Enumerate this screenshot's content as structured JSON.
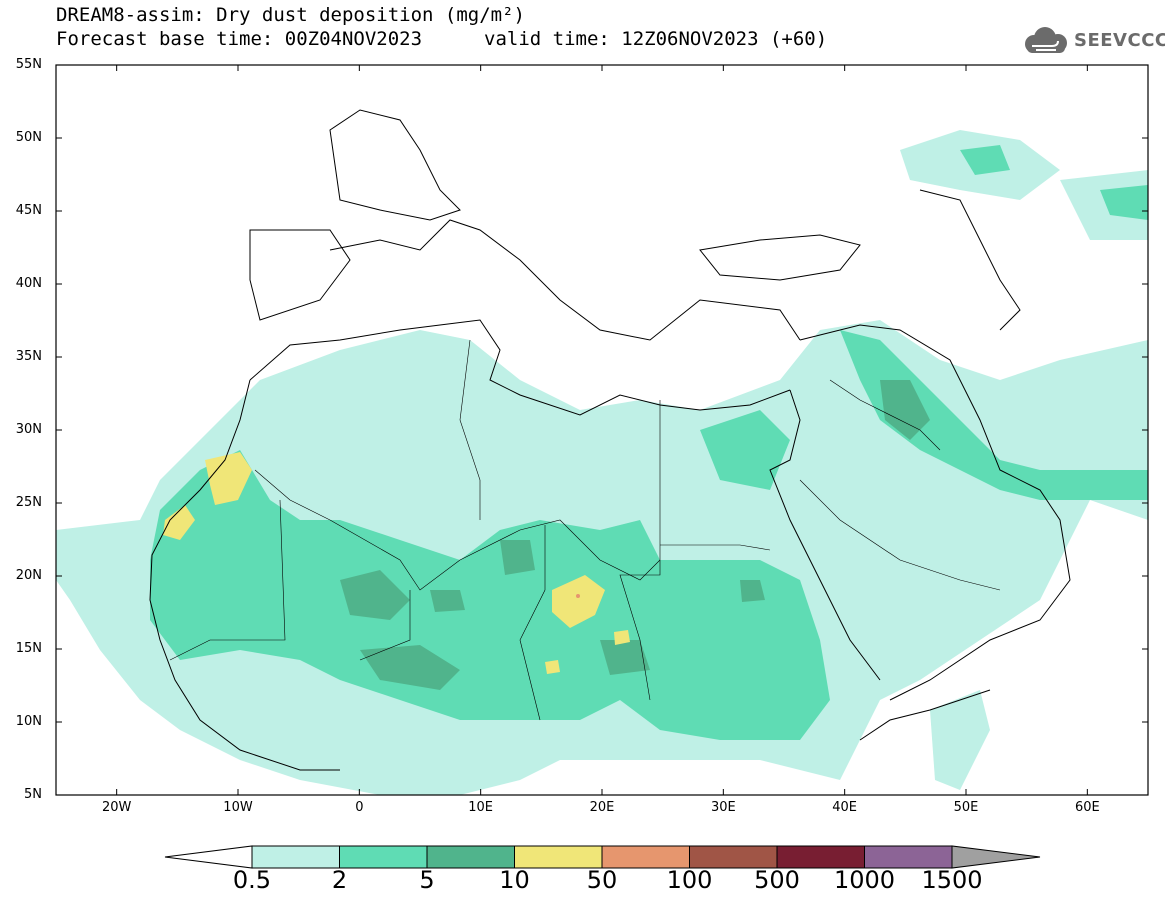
{
  "header": {
    "title": "DREAM8-assim: Dry dust deposition (mg/m²)",
    "base_time": "Forecast base time: 00Z04NOV2023",
    "valid_time": "valid time: 12Z06NOV2023 (+60)",
    "logo_text": "SEEVCCC",
    "logo_icon": "cloud-logo-icon"
  },
  "map": {
    "lat_ticks": [
      "55N",
      "50N",
      "45N",
      "40N",
      "35N",
      "30N",
      "25N",
      "20N",
      "15N",
      "10N",
      "5N"
    ],
    "lon_ticks": [
      "20W",
      "10W",
      "0",
      "10E",
      "20E",
      "30E",
      "40E",
      "50E",
      "60E"
    ],
    "lat_range": [
      5,
      55
    ],
    "lon_range": [
      -25,
      65
    ]
  },
  "legend": {
    "levels": [
      "0.5",
      "2",
      "5",
      "10",
      "50",
      "100",
      "500",
      "1000",
      "1500"
    ],
    "colors": [
      "#bff0e6",
      "#5fdcb4",
      "#50b48c",
      "#f0e678",
      "#e6966e",
      "#a05546",
      "#781e32",
      "#8c6496"
    ],
    "under_color": "#ffffff",
    "over_color": "#a0a0a0"
  }
}
